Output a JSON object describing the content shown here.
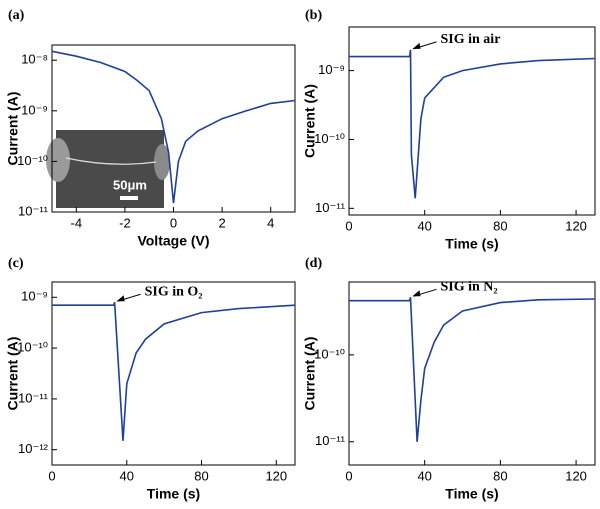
{
  "chart_data": [
    {
      "type": "line",
      "panel": "(a)",
      "xlabel": "Voltage (V)",
      "ylabel": "Current (A)",
      "log_y": true,
      "color": "#1f3f99",
      "inset_label": "50μm",
      "xlim": [
        -5,
        5
      ],
      "xticks": [
        -4,
        -2,
        0,
        2,
        4
      ],
      "ylim": [
        1e-11,
        2e-08
      ],
      "yticks": [
        {
          "value": 1e-11,
          "label": "10⁻¹¹"
        },
        {
          "value": 1e-10,
          "label": "10⁻¹⁰"
        },
        {
          "value": 1e-09,
          "label": "10⁻⁹"
        },
        {
          "value": 1e-08,
          "label": "10⁻⁸"
        }
      ],
      "x": [
        -5,
        -4,
        -3,
        -2,
        -1.5,
        -1,
        -0.5,
        -0.2,
        0,
        0.2,
        0.5,
        1,
        2,
        3,
        4,
        5
      ],
      "values": [
        1.5e-08,
        1.2e-08,
        9e-09,
        6e-09,
        4e-09,
        2.5e-09,
        7e-10,
        1.5e-10,
        1.5e-11,
        1e-10,
        2.5e-10,
        4e-10,
        7e-10,
        1e-09,
        1.4e-09,
        1.6e-09
      ]
    },
    {
      "type": "line",
      "panel": "(b)",
      "xlabel": "Time (s)",
      "ylabel": "Current (A)",
      "log_y": true,
      "color": "#1f3f99",
      "annotation": {
        "text": "SIG in air",
        "x": 32.5,
        "y": 2e-09
      },
      "xlim": [
        0,
        130
      ],
      "xticks": [
        0,
        40,
        80,
        120
      ],
      "ylim": [
        8e-12,
        4.3e-09
      ],
      "yticks": [
        {
          "value": 1e-11,
          "label": "10⁻¹¹"
        },
        {
          "value": 1e-10,
          "label": "10⁻¹⁰"
        },
        {
          "value": 1e-09,
          "label": "10⁻⁹"
        }
      ],
      "x": [
        0,
        32,
        32.5,
        33,
        35,
        38,
        40,
        50,
        60,
        80,
        100,
        130
      ],
      "values": [
        1.6e-09,
        1.6e-09,
        2e-09,
        6e-11,
        1.4e-11,
        2e-10,
        4e-10,
        8e-10,
        1e-09,
        1.25e-09,
        1.4e-09,
        1.5e-09
      ]
    },
    {
      "type": "line",
      "panel": "(c)",
      "xlabel": "Time (s)",
      "ylabel": "Current (A)",
      "log_y": true,
      "color": "#1f3f99",
      "annotation": {
        "text": "SIG in O₂",
        "x": 33.5,
        "y": 8e-10
      },
      "xlim": [
        0,
        130
      ],
      "xticks": [
        0,
        40,
        80,
        120
      ],
      "ylim": [
        5e-13,
        2e-09
      ],
      "yticks": [
        {
          "value": 1e-12,
          "label": "10⁻¹²"
        },
        {
          "value": 1e-11,
          "label": "10⁻¹¹"
        },
        {
          "value": 1e-10,
          "label": "10⁻¹⁰"
        },
        {
          "value": 1e-09,
          "label": "10⁻⁹"
        }
      ],
      "x": [
        0,
        33,
        33.5,
        38,
        40,
        45,
        50,
        60,
        80,
        100,
        130
      ],
      "values": [
        7e-10,
        7e-10,
        8e-10,
        1.5e-12,
        2e-11,
        8e-11,
        1.5e-10,
        3e-10,
        5e-10,
        6e-10,
        7e-10
      ]
    },
    {
      "type": "line",
      "panel": "(d)",
      "xlabel": "Time (s)",
      "ylabel": "Current (A)",
      "log_y": true,
      "color": "#1f3f99",
      "annotation": {
        "text": "SIG in N₂",
        "x": 32.5,
        "y": 4.6e-10
      },
      "xlim": [
        0,
        130
      ],
      "xticks": [
        0,
        40,
        80,
        120
      ],
      "ylim": [
        5.4e-12,
        6.9e-10
      ],
      "yticks": [
        {
          "value": 1e-11,
          "label": "10⁻¹¹"
        },
        {
          "value": 1e-10,
          "label": "10⁻¹⁰"
        }
      ],
      "x": [
        0,
        32,
        32.5,
        36,
        38,
        40,
        45,
        50,
        60,
        80,
        100,
        130
      ],
      "values": [
        4.2e-10,
        4.2e-10,
        4.6e-10,
        1e-11,
        3e-11,
        7e-11,
        1.4e-10,
        2.2e-10,
        3.2e-10,
        4e-10,
        4.3e-10,
        4.4e-10
      ]
    }
  ]
}
